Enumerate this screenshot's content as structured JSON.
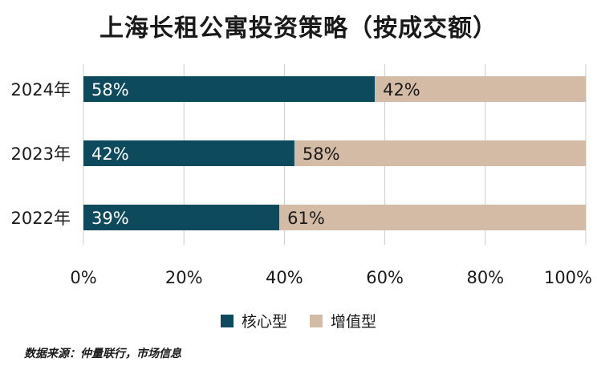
{
  "title": "上海长租公寓投资策略（按成交额）",
  "source": "数据来源：仲量联行，市场信息",
  "colors": {
    "core": "#0e4a5e",
    "value_add": "#d4bba6",
    "grid": "#cccccc"
  },
  "chart_data": {
    "type": "bar",
    "orientation": "horizontal",
    "stacked": true,
    "categories": [
      "2024年",
      "2023年",
      "2022年"
    ],
    "series": [
      {
        "name": "核心型",
        "values": [
          58,
          42,
          39
        ],
        "labels": [
          "58%",
          "42%",
          "39%"
        ]
      },
      {
        "name": "增值型",
        "values": [
          42,
          58,
          61
        ],
        "labels": [
          "42%",
          "58%",
          "61%"
        ]
      }
    ],
    "xlim": [
      0,
      100
    ],
    "xticks": [
      "0%",
      "20%",
      "40%",
      "60%",
      "80%",
      "100%"
    ],
    "grid": true,
    "legend_position": "bottom"
  }
}
